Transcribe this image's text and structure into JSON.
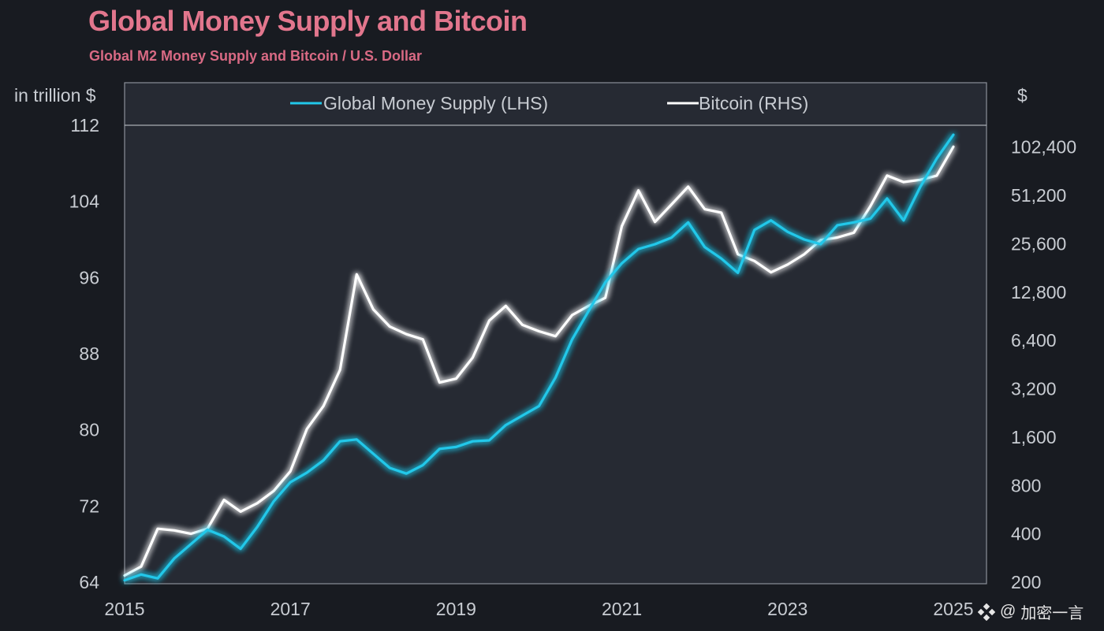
{
  "colors": {
    "background": "#181b21",
    "plot_area": "#262a33",
    "title": "#e2768d",
    "subtitle": "#d96a84",
    "money_supply": "#21c8ea",
    "bitcoin": "#ffffff",
    "text": "#c8ccd2"
  },
  "watermark": {
    "logo_icon": "diamond-grid-logo",
    "at": "@",
    "text": "加密一言"
  },
  "chart_data": {
    "type": "line",
    "title": "Global Money Supply and Bitcoin",
    "subtitle": "Global M2 Money Supply and Bitcoin / U.S. Dollar",
    "left_axis": {
      "label": "in trillion $",
      "ticks": [
        64,
        72,
        80,
        88,
        96,
        104,
        112
      ],
      "tick_labels": [
        "64",
        "72",
        "80",
        "88",
        "96",
        "104",
        "112"
      ],
      "range": [
        64,
        112
      ]
    },
    "right_axis": {
      "label": "$",
      "scale": "log2",
      "ticks": [
        200,
        400,
        800,
        1600,
        3200,
        6400,
        12800,
        25600,
        51200,
        102400
      ],
      "tick_labels": [
        "200",
        "400",
        "800",
        "1,600",
        "3,200",
        "6,400",
        "12,800",
        "25,600",
        "51,200",
        "102,400"
      ],
      "range": [
        200,
        140000
      ]
    },
    "x_axis": {
      "range": [
        2015.0,
        2025.4
      ],
      "ticks": [
        2015,
        2017,
        2019,
        2021,
        2023,
        2025
      ],
      "tick_labels": [
        "2015",
        "2017",
        "2019",
        "2021",
        "2023",
        "2025"
      ]
    },
    "grid": false,
    "legend": "top-center",
    "series": [
      {
        "name": "Global Money Supply (LHS)",
        "axis": "left",
        "x": [
          2015.0,
          2015.2,
          2015.4,
          2015.6,
          2015.8,
          2016.0,
          2016.2,
          2016.4,
          2016.6,
          2016.8,
          2017.0,
          2017.2,
          2017.4,
          2017.6,
          2017.8,
          2018.0,
          2018.2,
          2018.4,
          2018.6,
          2018.8,
          2019.0,
          2019.2,
          2019.4,
          2019.6,
          2019.8,
          2020.0,
          2020.2,
          2020.4,
          2020.6,
          2020.8,
          2021.0,
          2021.2,
          2021.4,
          2021.6,
          2021.8,
          2022.0,
          2022.2,
          2022.4,
          2022.6,
          2022.8,
          2023.0,
          2023.2,
          2023.4,
          2023.6,
          2023.8,
          2024.0,
          2024.2,
          2024.4,
          2024.6,
          2024.8,
          2025.0
        ],
        "values": [
          64.2,
          64.8,
          64.4,
          66.5,
          68.0,
          69.5,
          68.8,
          67.5,
          69.8,
          72.5,
          74.5,
          75.5,
          76.8,
          78.8,
          79.0,
          77.5,
          76.0,
          75.4,
          76.3,
          78.0,
          78.2,
          78.8,
          78.9,
          80.5,
          81.5,
          82.5,
          85.5,
          89.5,
          92.5,
          95.5,
          97.5,
          99.0,
          99.5,
          100.2,
          101.8,
          99.2,
          98.0,
          96.5,
          101.0,
          102.0,
          100.8,
          100.0,
          99.5,
          101.5,
          101.8,
          102.2,
          104.3,
          102.0,
          105.5,
          108.5,
          111.0
        ]
      },
      {
        "name": "Bitcoin (RHS)",
        "axis": "right",
        "x": [
          2015.0,
          2015.2,
          2015.4,
          2015.6,
          2015.8,
          2016.0,
          2016.2,
          2016.4,
          2016.6,
          2016.8,
          2017.0,
          2017.2,
          2017.4,
          2017.6,
          2017.8,
          2018.0,
          2018.2,
          2018.4,
          2018.6,
          2018.8,
          2019.0,
          2019.2,
          2019.4,
          2019.6,
          2019.8,
          2020.0,
          2020.2,
          2020.4,
          2020.6,
          2020.8,
          2021.0,
          2021.2,
          2021.4,
          2021.6,
          2021.8,
          2022.0,
          2022.2,
          2022.4,
          2022.6,
          2022.8,
          2023.0,
          2023.2,
          2023.4,
          2023.6,
          2023.8,
          2024.0,
          2024.2,
          2024.4,
          2024.6,
          2024.8,
          2025.0
        ],
        "values": [
          220,
          250,
          430,
          420,
          400,
          430,
          650,
          550,
          620,
          740,
          980,
          1800,
          2500,
          4200,
          16500,
          10000,
          7800,
          7000,
          6500,
          3500,
          3700,
          5000,
          8500,
          10500,
          8000,
          7300,
          6800,
          9200,
          10500,
          11800,
          33000,
          55000,
          35000,
          45000,
          58000,
          42000,
          40000,
          22000,
          20000,
          17000,
          19000,
          22000,
          27000,
          28000,
          30000,
          44000,
          68000,
          62000,
          64000,
          68000,
          103000
        ]
      }
    ]
  }
}
